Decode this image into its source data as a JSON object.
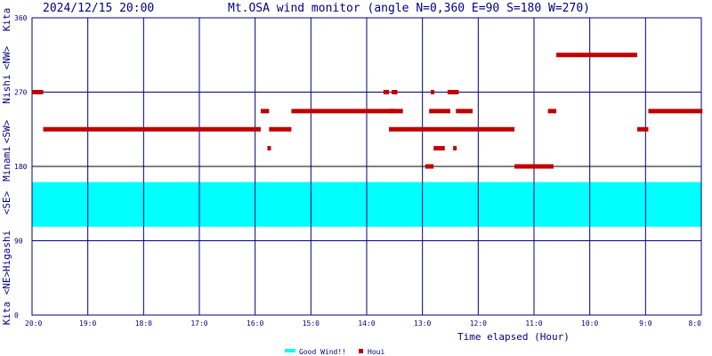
{
  "header": {
    "timestamp": "2024/12/15 20:00",
    "title": "Mt.OSA wind monitor (angle N=0,360 E=90 S=180 W=270)"
  },
  "chart_data": {
    "type": "scatter",
    "title": "Mt.OSA wind monitor (angle N=0,360 E=90 S=180 W=270)",
    "xlabel": "Time elapsed (Hour)",
    "ylabel": "Kita <NE> Higashi <SE> Minami <SW> Nishi <NW> Kita",
    "y_left_labels": [
      "Kita",
      "<NE>",
      "Higashi",
      "<SE>",
      "Minami",
      "<SW>",
      "Nishi",
      "<NW>",
      "Kita"
    ],
    "yticks": [
      0,
      90,
      180,
      270,
      360
    ],
    "ylim": [
      0,
      360
    ],
    "xlim": [
      20,
      8
    ],
    "xticks": [
      {
        "value": 20,
        "label": "20:0"
      },
      {
        "value": 19,
        "label": "19:0"
      },
      {
        "value": 18,
        "label": "18:0"
      },
      {
        "value": 17,
        "label": "17:0"
      },
      {
        "value": 16,
        "label": "16:0"
      },
      {
        "value": 15,
        "label": "15:0"
      },
      {
        "value": 14,
        "label": "14:0"
      },
      {
        "value": 13,
        "label": "13:0"
      },
      {
        "value": 12,
        "label": "12:0"
      },
      {
        "value": 11,
        "label": "11:0"
      },
      {
        "value": 10,
        "label": "10:0"
      },
      {
        "value": 9,
        "label": "9:0"
      },
      {
        "value": 8,
        "label": "8:0"
      }
    ],
    "good_wind_band": {
      "name": "Good Wind!!",
      "from": 107,
      "to": 161,
      "color": "#00ffff"
    },
    "series": [
      {
        "name": "Houi",
        "color": "#c00000",
        "segments": [
          {
            "x_start": 20.0,
            "x_end": 19.8,
            "y": 270
          },
          {
            "x_start": 19.8,
            "x_end": 15.9,
            "y": 225
          },
          {
            "x_start": 15.9,
            "x_end": 15.75,
            "y": 247
          },
          {
            "x_start": 15.75,
            "x_end": 15.35,
            "y": 225
          },
          {
            "x_start": 15.78,
            "x_end": 15.72,
            "y": 202
          },
          {
            "x_start": 15.35,
            "x_end": 13.5,
            "y": 247
          },
          {
            "x_start": 13.7,
            "x_end": 13.6,
            "y": 270
          },
          {
            "x_start": 13.55,
            "x_end": 13.45,
            "y": 270
          },
          {
            "x_start": 13.6,
            "x_end": 13.35,
            "y": 247
          },
          {
            "x_start": 13.6,
            "x_end": 13.45,
            "y": 225
          },
          {
            "x_start": 13.45,
            "x_end": 11.35,
            "y": 225
          },
          {
            "x_start": 12.95,
            "x_end": 12.8,
            "y": 180
          },
          {
            "x_start": 12.85,
            "x_end": 12.8,
            "y": 270
          },
          {
            "x_start": 12.8,
            "x_end": 12.6,
            "y": 202
          },
          {
            "x_start": 12.88,
            "x_end": 12.5,
            "y": 247
          },
          {
            "x_start": 12.55,
            "x_end": 12.35,
            "y": 270
          },
          {
            "x_start": 12.45,
            "x_end": 12.4,
            "y": 202
          },
          {
            "x_start": 12.4,
            "x_end": 12.1,
            "y": 247
          },
          {
            "x_start": 11.35,
            "x_end": 10.65,
            "y": 180
          },
          {
            "x_start": 10.75,
            "x_end": 10.6,
            "y": 247
          },
          {
            "x_start": 10.6,
            "x_end": 9.15,
            "y": 315
          },
          {
            "x_start": 9.15,
            "x_end": 8.95,
            "y": 225
          },
          {
            "x_start": 8.95,
            "x_end": 7.98,
            "y": 247
          }
        ]
      }
    ],
    "legend": [
      {
        "label": "Good Wind!!",
        "color": "#00ffff"
      },
      {
        "label": "Houi",
        "color": "#c00000"
      }
    ],
    "legend_position": "bottom-center",
    "grid": true
  }
}
